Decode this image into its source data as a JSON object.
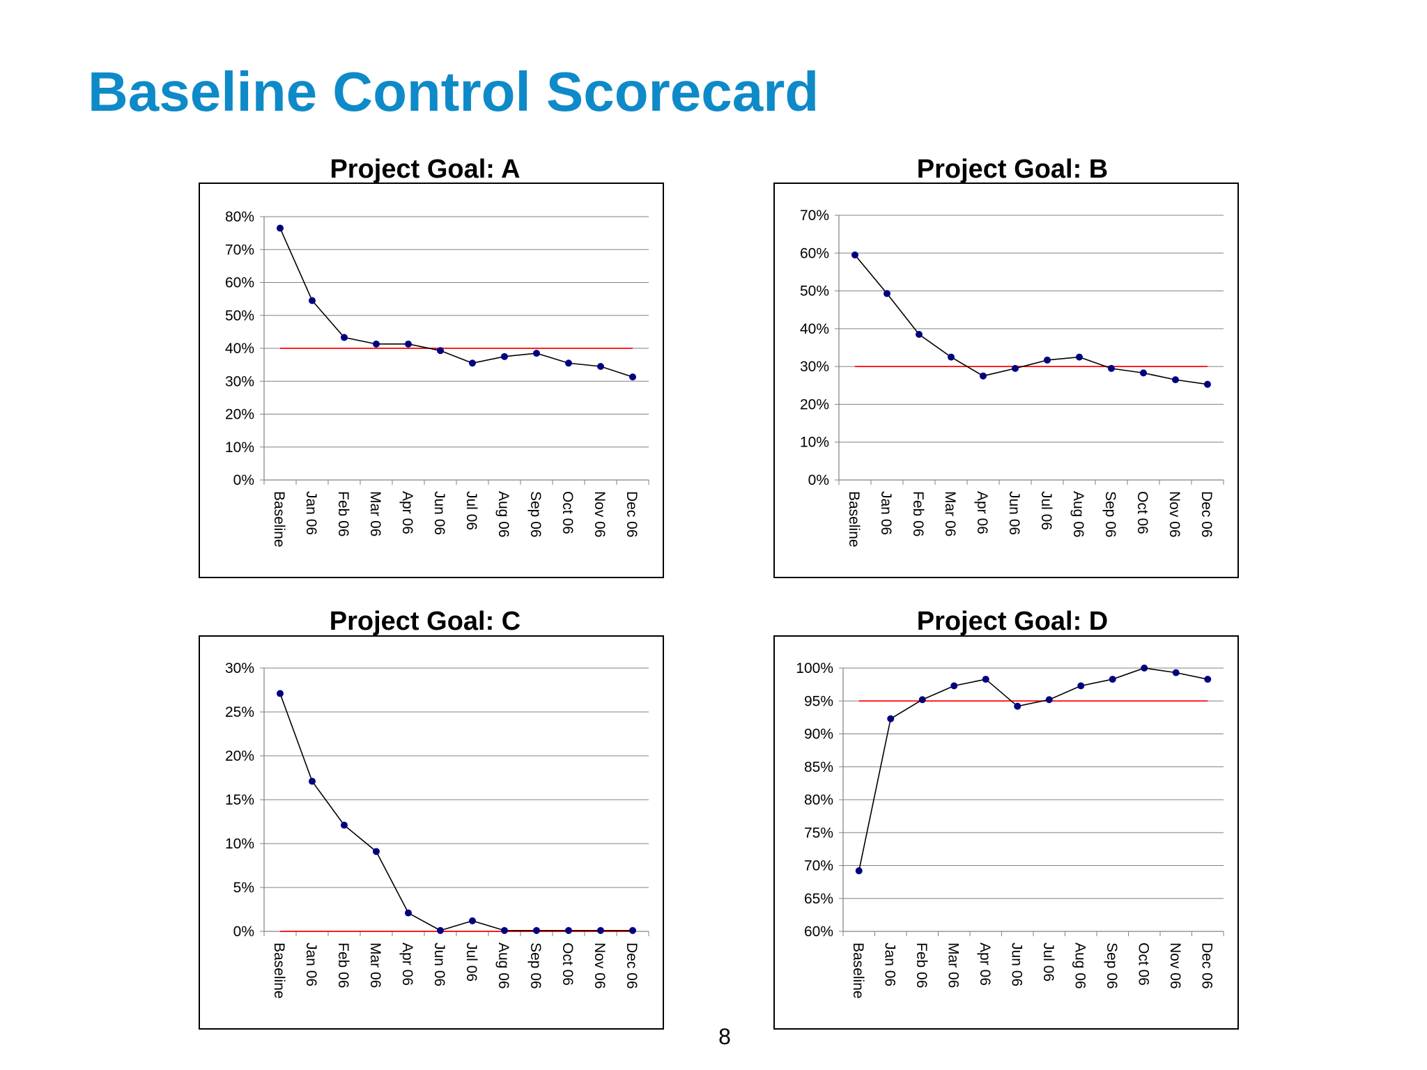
{
  "slide": {
    "title": "Baseline Control Scorecard",
    "page_number": "8"
  },
  "colors": {
    "title": "#0E8AC8",
    "data_line": "#000000",
    "marker": "#000080",
    "target_line": "#FF0000",
    "gridline": "#808080"
  },
  "chart_data": [
    {
      "type": "line",
      "title": "Project Goal: A",
      "categories": [
        "Baseline",
        "Jan 06",
        "Feb 06",
        "Mar 06",
        "Apr 06",
        "Jun 06",
        "Jul 06",
        "Aug 06",
        "Sep 06",
        "Oct 06",
        "Nov 06",
        "Dec 06"
      ],
      "series": [
        {
          "values": [
            76.5,
            54.5,
            43.3,
            41.3,
            41.3,
            39.3,
            35.5,
            37.5,
            38.5,
            35.5,
            34.5,
            31.3
          ]
        }
      ],
      "target": 40,
      "ylim": [
        0,
        80
      ],
      "yticks": [
        0,
        10,
        20,
        30,
        40,
        50,
        60,
        70,
        80
      ],
      "ytick_labels": [
        "0%",
        "10%",
        "20%",
        "30%",
        "40%",
        "50%",
        "60%",
        "70%",
        "80%"
      ],
      "xlabel": "",
      "ylabel": "",
      "grid": true,
      "legend": "none"
    },
    {
      "type": "line",
      "title": "Project Goal: B",
      "categories": [
        "Baseline",
        "Jan 06",
        "Feb 06",
        "Mar 06",
        "Apr 06",
        "Jun 06",
        "Jul 06",
        "Aug 06",
        "Sep 06",
        "Oct 06",
        "Nov 06",
        "Dec 06"
      ],
      "series": [
        {
          "values": [
            59.5,
            49.3,
            38.5,
            32.5,
            27.5,
            29.5,
            31.7,
            32.5,
            29.5,
            28.3,
            26.5,
            25.3
          ]
        }
      ],
      "target": 30,
      "ylim": [
        0,
        70
      ],
      "yticks": [
        0,
        10,
        20,
        30,
        40,
        50,
        60,
        70
      ],
      "ytick_labels": [
        "0%",
        "10%",
        "20%",
        "30%",
        "40%",
        "50%",
        "60%",
        "70%"
      ],
      "xlabel": "",
      "ylabel": "",
      "grid": true,
      "legend": "none"
    },
    {
      "type": "line",
      "title": "Project Goal: C",
      "categories": [
        "Baseline",
        "Jan 06",
        "Feb 06",
        "Mar 06",
        "Apr 06",
        "Jun 06",
        "Jul 06",
        "Aug 06",
        "Sep 06",
        "Oct 06",
        "Nov 06",
        "Dec 06"
      ],
      "series": [
        {
          "values": [
            27.1,
            17.1,
            12.1,
            9.1,
            2.1,
            0.1,
            1.2,
            0.1,
            0.1,
            0.1,
            0.1,
            0.1
          ]
        }
      ],
      "target": 0,
      "ylim": [
        0,
        30
      ],
      "yticks": [
        0,
        5,
        10,
        15,
        20,
        25,
        30
      ],
      "ytick_labels": [
        "0%",
        "5%",
        "10%",
        "15%",
        "20%",
        "25%",
        "30%"
      ],
      "xlabel": "",
      "ylabel": "",
      "grid": true,
      "legend": "none"
    },
    {
      "type": "line",
      "title": "Project Goal: D",
      "categories": [
        "Baseline",
        "Jan 06",
        "Feb 06",
        "Mar 06",
        "Apr 06",
        "Jun 06",
        "Jul 06",
        "Aug 06",
        "Sep 06",
        "Oct 06",
        "Nov 06",
        "Dec 06"
      ],
      "series": [
        {
          "values": [
            69.2,
            92.3,
            95.2,
            97.3,
            98.3,
            94.2,
            95.2,
            97.3,
            98.3,
            100.0,
            99.3,
            98.3
          ]
        }
      ],
      "target": 95,
      "ylim": [
        60,
        100
      ],
      "yticks": [
        60,
        65,
        70,
        75,
        80,
        85,
        90,
        95,
        100
      ],
      "ytick_labels": [
        "60%",
        "65%",
        "70%",
        "75%",
        "80%",
        "85%",
        "90%",
        "95%",
        "100%"
      ],
      "xlabel": "",
      "ylabel": "",
      "grid": true,
      "legend": "none"
    }
  ]
}
